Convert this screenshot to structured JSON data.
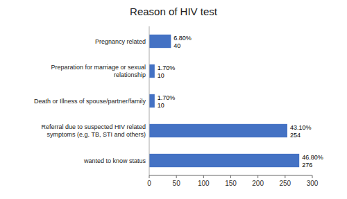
{
  "chart_data": {
    "type": "bar",
    "title": "Reason of HIV test",
    "orientation": "horizontal",
    "categories": [
      "wanted to know status",
      "Referral due to suspected HIV related\nsymptoms (e.g. TB, STI and others)",
      "Death or Illness of spouse/partner/family",
      "Preparation for marriage or sexual\nrelationship",
      "Pregnancy related"
    ],
    "values": [
      276,
      254,
      10,
      10,
      40
    ],
    "percentages": [
      "46.80%",
      "43.10%",
      "1.70%",
      "1.70%",
      "6.80%"
    ],
    "color": "#4472c4",
    "xlim": [
      0,
      300
    ],
    "xticks": [
      0,
      50,
      100,
      150,
      200,
      250,
      300
    ],
    "data_labels": true,
    "grid": false
  }
}
